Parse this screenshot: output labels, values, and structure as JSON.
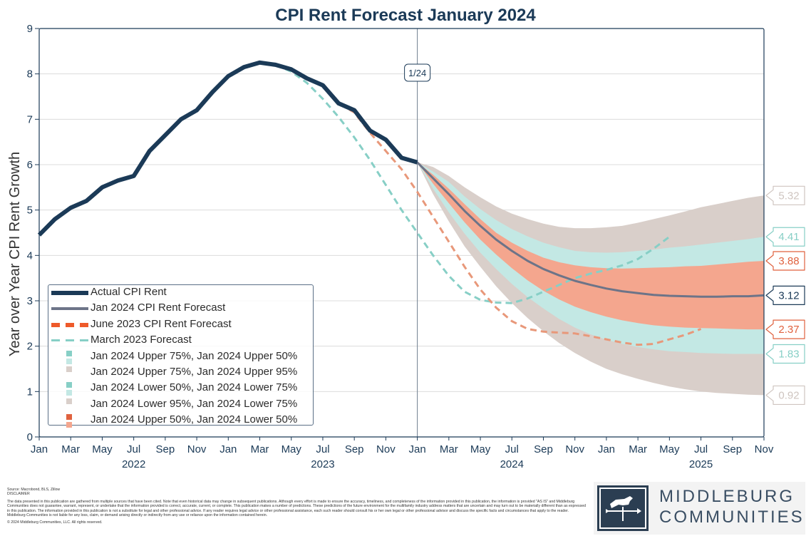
{
  "chart_data": {
    "type": "line",
    "title": "CPI Rent Forecast January 2024",
    "ylabel": "Year over Year CPI Rent Growth",
    "xlabel": "",
    "ylim": [
      0,
      9
    ],
    "yticks": [
      0,
      1,
      2,
      3,
      4,
      5,
      6,
      7,
      8,
      9
    ],
    "x_domain": [
      "2022-01",
      "2025-11"
    ],
    "month_tick_labels": [
      "Jan",
      "Mar",
      "May",
      "Jul",
      "Sep",
      "Nov",
      "Jan",
      "Mar",
      "May",
      "Jul",
      "Sep",
      "Nov",
      "Jan",
      "Mar",
      "May",
      "Jul",
      "Sep",
      "Nov",
      "Jan",
      "Mar",
      "May",
      "Jul",
      "Sep",
      "Nov"
    ],
    "year_labels": [
      {
        "label": "2022",
        "month": 6
      },
      {
        "label": "2023",
        "month": 18
      },
      {
        "label": "2024",
        "month": 30
      },
      {
        "label": "2025",
        "month": 42
      }
    ],
    "vline": {
      "month": 24,
      "label": "1/24"
    },
    "series": [
      {
        "name": "Actual CPI Rent",
        "color": "#1b3a57",
        "style": "solid-thick",
        "months": [
          0,
          1,
          2,
          3,
          4,
          5,
          6,
          7,
          8,
          9,
          10,
          11,
          12,
          13,
          14,
          15,
          16,
          17,
          18,
          19,
          20,
          21,
          22,
          23,
          24
        ],
        "values": [
          4.45,
          4.8,
          5.05,
          5.2,
          5.5,
          5.65,
          5.75,
          6.3,
          6.65,
          7.0,
          7.2,
          7.6,
          7.95,
          8.15,
          8.25,
          8.2,
          8.1,
          7.9,
          7.75,
          7.35,
          7.2,
          6.75,
          6.55,
          6.15,
          6.05
        ]
      },
      {
        "name": "Jan 2024 CPI Rent Forecast",
        "color": "#6d7488",
        "style": "solid",
        "months": [
          24,
          25,
          26,
          27,
          28,
          29,
          30,
          31,
          32,
          33,
          34,
          35,
          36,
          37,
          38,
          39,
          40,
          41,
          42,
          43,
          44,
          45,
          46
        ],
        "values": [
          6.05,
          5.7,
          5.35,
          4.98,
          4.65,
          4.35,
          4.1,
          3.88,
          3.7,
          3.56,
          3.44,
          3.35,
          3.27,
          3.21,
          3.17,
          3.13,
          3.11,
          3.1,
          3.09,
          3.09,
          3.1,
          3.1,
          3.12
        ]
      },
      {
        "name": "June 2023 CPI Rent Forecast",
        "color": "#e8987a",
        "style": "dashed",
        "months": [
          17,
          18,
          19,
          20,
          21,
          22,
          23,
          24,
          25,
          26,
          27,
          28,
          29,
          30,
          31,
          32,
          33,
          34,
          35,
          36,
          37,
          38,
          39,
          40,
          41,
          42
        ],
        "values": [
          7.9,
          7.75,
          7.35,
          7.15,
          6.7,
          6.3,
          5.9,
          5.4,
          4.85,
          4.3,
          3.75,
          3.25,
          2.85,
          2.55,
          2.38,
          2.32,
          2.3,
          2.28,
          2.22,
          2.15,
          2.08,
          2.03,
          2.05,
          2.15,
          2.25,
          2.38
        ]
      },
      {
        "name": "March 2023 Forecast",
        "color": "#87cfc6",
        "style": "dashed",
        "months": [
          15,
          16,
          17,
          18,
          19,
          20,
          21,
          22,
          23,
          24,
          25,
          26,
          27,
          28,
          29,
          30,
          31,
          32,
          33,
          34,
          35,
          36,
          37,
          38,
          39,
          40
        ],
        "values": [
          8.2,
          8.05,
          7.8,
          7.45,
          7.05,
          6.6,
          6.1,
          5.55,
          5.0,
          4.5,
          4.0,
          3.55,
          3.2,
          3.02,
          2.96,
          2.95,
          3.05,
          3.2,
          3.35,
          3.5,
          3.6,
          3.68,
          3.78,
          3.92,
          4.15,
          4.41
        ]
      }
    ],
    "bands": {
      "months": [
        24,
        25,
        26,
        27,
        28,
        29,
        30,
        31,
        32,
        33,
        34,
        35,
        36,
        37,
        38,
        39,
        40,
        41,
        42,
        43,
        44,
        45,
        46
      ],
      "upper95": [
        6.05,
        5.95,
        5.75,
        5.5,
        5.28,
        5.08,
        4.92,
        4.8,
        4.7,
        4.63,
        4.6,
        4.6,
        4.62,
        4.65,
        4.72,
        4.8,
        4.88,
        4.97,
        5.06,
        5.13,
        5.2,
        5.27,
        5.32
      ],
      "upper75": [
        6.05,
        5.85,
        5.62,
        5.3,
        5.02,
        4.78,
        4.58,
        4.42,
        4.28,
        4.18,
        4.1,
        4.07,
        4.06,
        4.07,
        4.1,
        4.13,
        4.17,
        4.2,
        4.24,
        4.28,
        4.32,
        4.36,
        4.41
      ],
      "upper50": [
        6.05,
        5.78,
        5.47,
        5.13,
        4.8,
        4.5,
        4.28,
        4.1,
        3.95,
        3.85,
        3.78,
        3.74,
        3.72,
        3.71,
        3.72,
        3.73,
        3.74,
        3.76,
        3.77,
        3.8,
        3.83,
        3.86,
        3.88
      ],
      "lower50": [
        6.05,
        5.58,
        5.15,
        4.73,
        4.35,
        4.02,
        3.72,
        3.45,
        3.22,
        3.03,
        2.87,
        2.75,
        2.65,
        2.57,
        2.51,
        2.46,
        2.43,
        2.41,
        2.4,
        2.39,
        2.38,
        2.37,
        2.37
      ],
      "lower75": [
        6.05,
        5.47,
        4.95,
        4.48,
        4.06,
        3.7,
        3.37,
        3.08,
        2.83,
        2.6,
        2.41,
        2.26,
        2.14,
        2.05,
        1.98,
        1.93,
        1.89,
        1.87,
        1.85,
        1.84,
        1.83,
        1.83,
        1.83
      ],
      "lower95": [
        6.05,
        5.35,
        4.75,
        4.2,
        3.75,
        3.32,
        2.95,
        2.62,
        2.33,
        2.07,
        1.85,
        1.66,
        1.5,
        1.38,
        1.28,
        1.19,
        1.11,
        1.05,
        1.0,
        0.97,
        0.95,
        0.93,
        0.92
      ],
      "colors": {
        "outer": "#d9cfca",
        "mid": "#c3e8e4",
        "inner": "#f4a68e"
      }
    },
    "end_labels": [
      {
        "value": 5.32,
        "text": "5.32",
        "color": "#cfc5c0"
      },
      {
        "value": 4.41,
        "text": "4.41",
        "color": "#87cfc6"
      },
      {
        "value": 3.88,
        "text": "3.88",
        "color": "#e0623f"
      },
      {
        "value": 3.12,
        "text": "3.12",
        "color": "#1b3a57"
      },
      {
        "value": 2.37,
        "text": "2.37",
        "color": "#e0623f"
      },
      {
        "value": 1.83,
        "text": "1.83",
        "color": "#87cfc6"
      },
      {
        "value": 0.92,
        "text": "0.92",
        "color": "#cfc5c0"
      }
    ]
  },
  "legend": [
    {
      "label": "Actual CPI Rent",
      "kind": "line-thick",
      "color": "#1b3a57"
    },
    {
      "label": "Jan 2024 CPI Rent Forecast",
      "kind": "line",
      "color": "#6d7488"
    },
    {
      "label": "June 2023 CPI Rent Forecast",
      "kind": "dash-thick",
      "color": "#ee5a2a"
    },
    {
      "label": "March 2023 Forecast",
      "kind": "dash",
      "color": "#87cfc6"
    },
    {
      "label": "Jan 2024 Upper 75%, Jan 2024 Upper 50%",
      "kind": "squares",
      "c1": "#87cfc6",
      "c2": "#c3e8e4"
    },
    {
      "label": "Jan 2024 Upper 75%, Jan 2024 Upper 95%",
      "kind": "squares",
      "c1": "#d9cfca",
      "c2": "#ffffff"
    },
    {
      "label": "Jan 2024 Lower 50%, Jan 2024 Lower 75%",
      "kind": "squares",
      "c1": "#87cfc6",
      "c2": "#c3e8e4"
    },
    {
      "label": "Jan 2024 Lower 95%, Jan 2024 Lower 75%",
      "kind": "squares",
      "c1": "#d9cfca",
      "c2": "#ffffff"
    },
    {
      "label": "Jan 2024 Upper 50%, Jan 2024 Lower 50%",
      "kind": "squares",
      "c1": "#e0623f",
      "c2": "#f4a68e"
    }
  ],
  "footer": {
    "source": "Source: Macrobond, BLS, Zillow",
    "disclaimer_title": "DISCLAIMER",
    "disclaimer": "The data presented in this publication are gathered from multiple sources that have been cited. Note that even historical data may change in subsequent publications. Although every effort is made to ensure the accuracy, timeliness, and completeness of the information provided in this publication, the information is provided \"AS IS\" and Middleburg Communities does not guarantee, warrant, represent, or undertake that the information provided is correct, accurate, current, or complete. This publication makes a number of predictions. These predictions of the future environment for the multifamily industry address matters that are uncertain and may turn out to be materially different than as expressed in this publication. The information provided in this publication is not a substitute for legal and other professional advice. If any reader requires legal advice or other professional assistance, each such reader should consult his or her own legal or other professional advisor and discuss the specific facts and circumstances that apply to the reader. Middleburg Communities is not liable for any loss, claim, or demand arising directly or indirectly from any use or reliance upon the information contained herein.",
    "copyright": "© 2024 Middleburg Communities, LLC. All rights reserved."
  },
  "logo": {
    "line1": "MIDDLEBURG",
    "line2": "COMMUNITIES"
  }
}
